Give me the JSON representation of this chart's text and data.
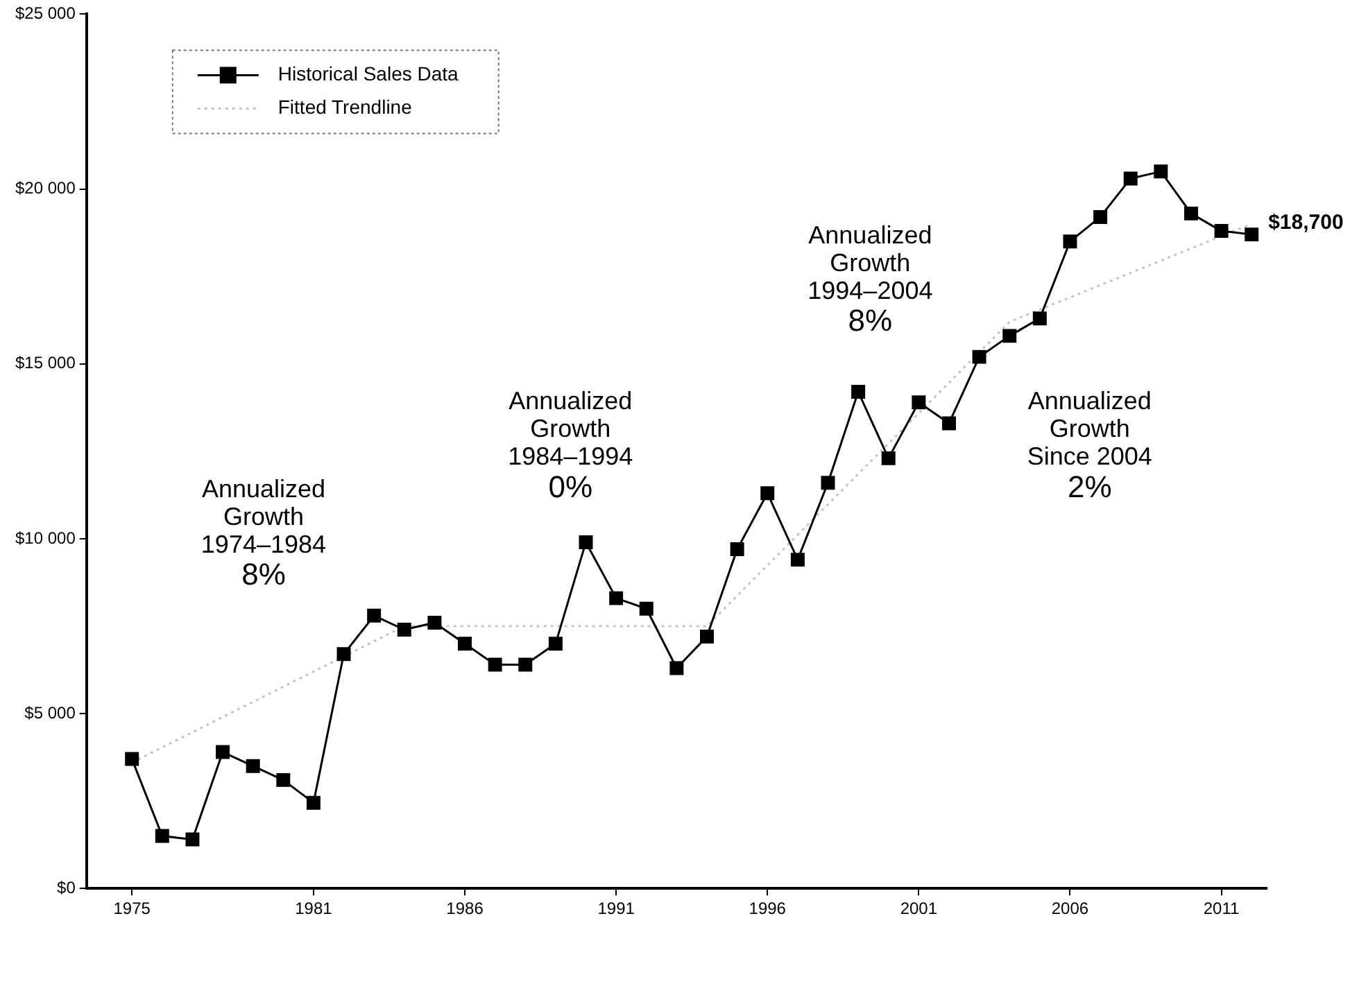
{
  "chart_data": {
    "type": "line",
    "x": [
      1975,
      1976,
      1977,
      1978,
      1979,
      1980,
      1981,
      1982,
      1983,
      1984,
      1985,
      1986,
      1987,
      1988,
      1989,
      1990,
      1991,
      1992,
      1993,
      1994,
      1995,
      1996,
      1997,
      1998,
      1999,
      2000,
      2001,
      2002,
      2003,
      2004,
      2005,
      2006,
      2007,
      2008,
      2009,
      2010,
      2011,
      2012
    ],
    "series": [
      {
        "name": "Historical Sales Data",
        "color": "#000000",
        "marker": "square",
        "line_style": "solid",
        "values": [
          3700,
          1500,
          1400,
          3900,
          3500,
          3100,
          2450,
          6700,
          7800,
          7400,
          7600,
          7000,
          6400,
          6400,
          7000,
          9900,
          8300,
          8000,
          6300,
          7200,
          9700,
          11300,
          9400,
          11600,
          14200,
          12300,
          13900,
          13300,
          15200,
          15800,
          16300,
          18500,
          19200,
          20300,
          20500,
          19300,
          18800,
          18700
        ],
        "value_labels": [
          null,
          null,
          null,
          null,
          null,
          null,
          null,
          null,
          null,
          null,
          null,
          null,
          null,
          null,
          null,
          null,
          null,
          null,
          null,
          null,
          null,
          null,
          null,
          null,
          null,
          null,
          null,
          null,
          null,
          null,
          null,
          null,
          null,
          null,
          null,
          null,
          null,
          "$18,700"
        ]
      },
      {
        "name": "Fitted Trendline",
        "color": "#c4c4c4",
        "marker": "none",
        "line_style": "dotted",
        "x": [
          1975,
          1984,
          1994,
          2004,
          2012
        ],
        "values": [
          3600,
          7500,
          7500,
          16200,
          19000
        ]
      }
    ],
    "xlim": [
      1973.5,
      2012.5
    ],
    "xticks": [
      1975,
      1981,
      1986,
      1991,
      1996,
      2001,
      2006,
      2011
    ],
    "ylim": [
      0,
      25000
    ],
    "yticks": [
      {
        "value": 0,
        "label": "$0"
      },
      {
        "value": 5000,
        "label": "$5 000"
      },
      {
        "value": 10000,
        "label": "$10 000"
      },
      {
        "value": 15000,
        "label": "$15 000"
      },
      {
        "value": 20000,
        "label": "$20 000"
      },
      {
        "value": 25000,
        "label": "$25 000"
      }
    ],
    "grid": false,
    "legend": "top left",
    "annotations": [
      "Annualized\nGrowth\n1974–1984\n8%",
      "Annualized\nGrowth\n1984–1994\n0%",
      "Annualized\nGrowth\n1994–2004\n8%",
      "Annualized\nGrowth\nSince 2004\n2%"
    ]
  }
}
